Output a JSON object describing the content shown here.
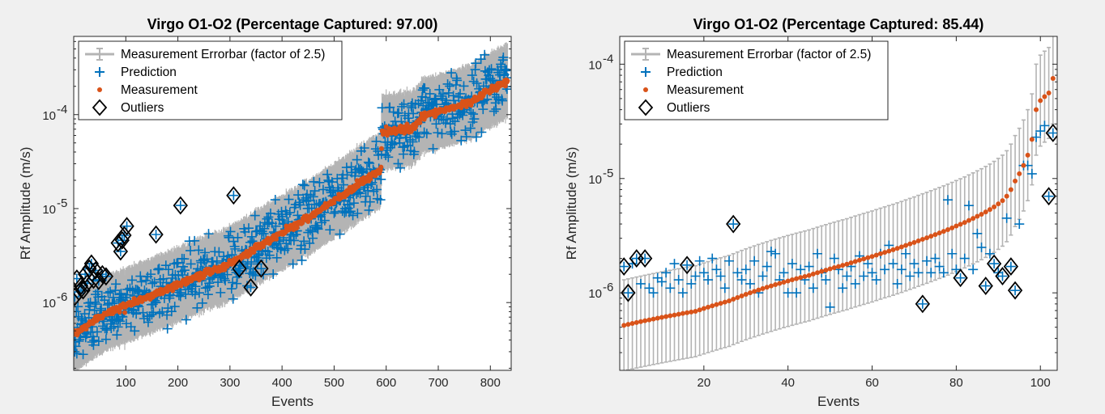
{
  "chart_data": [
    {
      "type": "scatter",
      "title": "Virgo O1-O2 (Percentage Captured: 97.00)",
      "xlabel": "Events",
      "ylabel": "Rf Amplitude (m/s)",
      "xlim": [
        0,
        840
      ],
      "ylim": [
        1.9e-07,
        0.00068
      ],
      "yscale": "log",
      "xticks": [
        100,
        200,
        300,
        400,
        500,
        600,
        700,
        800
      ],
      "xtick_labels": [
        "100",
        "200",
        "300",
        "400",
        "500",
        "600",
        "700",
        "800"
      ],
      "yticks": [
        1e-06,
        1e-05,
        0.0001
      ],
      "ytick_labels": [
        "10",
        "10",
        "10"
      ],
      "ytick_exponents": [
        "-6",
        "-5",
        "-4"
      ],
      "legend": {
        "position": "top-left",
        "entries": [
          "Measurement Errorbar (factor of 2.5)",
          "Prediction",
          "Measurement",
          "Outliers"
        ]
      },
      "colors": {
        "errorbar": "#b4b4b4",
        "prediction": "#0072bd",
        "measurement": "#d95319",
        "outlier": "#000000"
      },
      "n_events": 833,
      "errorbar_factor": 2.5,
      "measurement_profile": {
        "x": [
          1,
          50,
          150,
          300,
          450,
          590,
          592,
          650,
          670,
          760,
          833
        ],
        "y": [
          4.5e-07,
          7.2e-07,
          1.2e-06,
          2.6e-06,
          8e-06,
          2.6e-05,
          6.5e-05,
          7.2e-05,
          9.5e-05,
          0.000135,
          0.00023
        ]
      },
      "outliers": [
        {
          "x": 2,
          "y": 1.15e-06
        },
        {
          "x": 6,
          "y": 1.8e-06
        },
        {
          "x": 10,
          "y": 1.3e-06
        },
        {
          "x": 14,
          "y": 1.5e-06
        },
        {
          "x": 18,
          "y": 1.35e-06
        },
        {
          "x": 22,
          "y": 2e-06
        },
        {
          "x": 26,
          "y": 1.6e-06
        },
        {
          "x": 30,
          "y": 2.3e-06
        },
        {
          "x": 34,
          "y": 2.6e-06
        },
        {
          "x": 38,
          "y": 1.75e-06
        },
        {
          "x": 42,
          "y": 2.2e-06
        },
        {
          "x": 48,
          "y": 1.7e-06
        },
        {
          "x": 55,
          "y": 2e-06
        },
        {
          "x": 62,
          "y": 1.9e-06
        },
        {
          "x": 85,
          "y": 4.3e-06
        },
        {
          "x": 90,
          "y": 3.5e-06
        },
        {
          "x": 93,
          "y": 4.6e-06
        },
        {
          "x": 97,
          "y": 5.2e-06
        },
        {
          "x": 102,
          "y": 6.5e-06
        },
        {
          "x": 158,
          "y": 5.3e-06
        },
        {
          "x": 205,
          "y": 1.08e-05
        },
        {
          "x": 307,
          "y": 1.38e-05
        },
        {
          "x": 318,
          "y": 2.3e-06
        },
        {
          "x": 340,
          "y": 1.45e-06
        },
        {
          "x": 360,
          "y": 2.3e-06
        }
      ],
      "prediction_scatter_factor": 2.5
    },
    {
      "type": "scatter",
      "title": "Virgo O1-O2 (Percentage Captured: 85.44)",
      "xlabel": "Events",
      "ylabel": "Rf Amplitude (m/s)",
      "xlim": [
        0,
        104
      ],
      "ylim": [
        2.1e-07,
        0.000175
      ],
      "yscale": "log",
      "xticks": [
        20,
        40,
        60,
        80,
        100
      ],
      "xtick_labels": [
        "20",
        "40",
        "60",
        "80",
        "100"
      ],
      "yticks": [
        1e-06,
        1e-05,
        0.0001
      ],
      "ytick_labels": [
        "10",
        "10",
        "10"
      ],
      "ytick_exponents": [
        "-6",
        "-5",
        "-4"
      ],
      "legend": {
        "position": "top-left",
        "entries": [
          "Measurement Errorbar (factor of 2.5)",
          "Prediction",
          "Measurement",
          "Outliers"
        ]
      },
      "colors": {
        "errorbar": "#b4b4b4",
        "prediction": "#0072bd",
        "measurement": "#d95319",
        "outlier": "#000000"
      },
      "n_events": 103,
      "errorbar_factor": 2.5,
      "measurement": [
        5.2e-07,
        5.3e-07,
        5.4e-07,
        5.5e-07,
        5.6e-07,
        5.7e-07,
        5.8e-07,
        5.9e-07,
        6e-07,
        6.1e-07,
        6.2e-07,
        6.3e-07,
        6.4e-07,
        6.5e-07,
        6.6e-07,
        6.7e-07,
        6.8e-07,
        6.9e-07,
        7.1e-07,
        7.3e-07,
        7.5e-07,
        7.7e-07,
        7.9e-07,
        8.1e-07,
        8.3e-07,
        8.5e-07,
        8.8e-07,
        9.1e-07,
        9.4e-07,
        9.7e-07,
        1e-06,
        1.03e-06,
        1.06e-06,
        1.09e-06,
        1.12e-06,
        1.15e-06,
        1.18e-06,
        1.21e-06,
        1.24e-06,
        1.27e-06,
        1.3e-06,
        1.33e-06,
        1.36e-06,
        1.39e-06,
        1.42e-06,
        1.46e-06,
        1.5e-06,
        1.54e-06,
        1.58e-06,
        1.62e-06,
        1.66e-06,
        1.7e-06,
        1.74e-06,
        1.78e-06,
        1.83e-06,
        1.88e-06,
        1.93e-06,
        1.98e-06,
        2.03e-06,
        2.08e-06,
        2.14e-06,
        2.2e-06,
        2.26e-06,
        2.32e-06,
        2.38e-06,
        2.45e-06,
        2.52e-06,
        2.6e-06,
        2.68e-06,
        2.76e-06,
        2.85e-06,
        2.94e-06,
        3.03e-06,
        3.13e-06,
        3.23e-06,
        3.34e-06,
        3.45e-06,
        3.57e-06,
        3.7e-06,
        3.84e-06,
        3.98e-06,
        4.13e-06,
        4.3e-06,
        4.48e-06,
        4.67e-06,
        4.87e-06,
        5.1e-06,
        5.35e-06,
        5.65e-06,
        6e-06,
        6.4e-06,
        7e-06,
        8e-06,
        9.5e-06,
        1.1e-05,
        1.3e-05,
        1.6e-05,
        2.2e-05,
        4e-05,
        4.8e-05,
        5.2e-05,
        5.6e-05,
        7.5e-05
      ],
      "prediction": [
        1.7e-06,
        1e-06,
        1.8e-06,
        2e-06,
        1.2e-06,
        2e-06,
        1.1e-06,
        1e-06,
        1.35e-06,
        1.25e-06,
        1.5e-06,
        1.1e-06,
        1.8e-06,
        1.3e-06,
        1e-06,
        1.75e-06,
        1.2e-06,
        1.4e-06,
        1.9e-06,
        1.5e-06,
        1.3e-06,
        2e-06,
        1.6e-06,
        1.4e-06,
        1.1e-06,
        1.9e-06,
        4e-06,
        1.5e-06,
        1.3e-06,
        1.6e-06,
        1.2e-06,
        1.9e-06,
        1e-06,
        1.4e-06,
        1.7e-06,
        2.3e-06,
        2.2e-06,
        1.3e-06,
        1.5e-06,
        1e-06,
        1.8e-06,
        1e-06,
        1.6e-06,
        1.3e-06,
        1.7e-06,
        1.1e-06,
        2.2e-06,
        1.5e-06,
        1.3e-06,
        7.5e-07,
        2e-06,
        1.6e-06,
        1.1e-06,
        1.4e-06,
        1.7e-06,
        1.2e-06,
        2.1e-06,
        1.4e-06,
        1.8e-06,
        1.5e-06,
        1.3e-06,
        2.2e-06,
        1.6e-06,
        2.6e-06,
        1.8e-06,
        1.2e-06,
        1.6e-06,
        2.2e-06,
        1.4e-06,
        1.8e-06,
        1.5e-06,
        8e-07,
        1.9e-06,
        1.5e-06,
        2e-06,
        1.7e-06,
        1.5e-06,
        6.5e-06,
        2.2e-06,
        1.6e-06,
        1.35e-06,
        2e-06,
        5.8e-06,
        1.6e-06,
        3.3e-06,
        2.5e-06,
        1.15e-06,
        2.2e-06,
        1.8e-06,
        1.5e-06,
        1.4e-06,
        4.5e-06,
        1.7e-06,
        1.05e-06,
        4e-06,
        1.3e-05,
        1.3e-05,
        1.1e-05,
        2.3e-05,
        2.6e-05,
        2.9e-05,
        7e-06,
        2.5e-05
      ],
      "outlier_events": [
        1,
        2,
        4,
        6,
        16,
        27,
        72,
        81,
        87,
        89,
        91,
        93,
        94,
        102,
        103
      ]
    }
  ]
}
